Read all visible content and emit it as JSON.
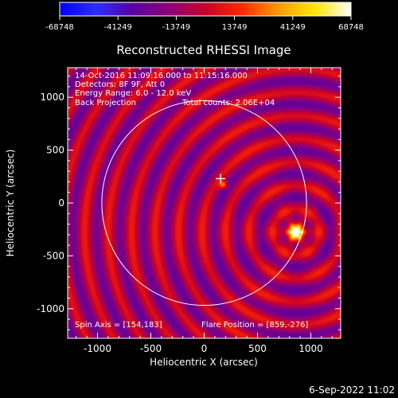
{
  "colorbar": {
    "ticks": [
      -68748,
      -41249,
      -13749,
      13749,
      41249,
      68748
    ],
    "tick_labels": [
      "-68748",
      "-41249",
      "-13749",
      "13749",
      "41249",
      "68748"
    ],
    "colors": [
      "#0000ff",
      "#2d2dff",
      "#5a00a0",
      "#8c0078",
      "#c80028",
      "#ff2800",
      "#ff9a00",
      "#ffe600",
      "#ffffff"
    ]
  },
  "title": "Reconstructed RHESSI Image",
  "info": {
    "line1": "14-Oct-2016 11:09:16.000 to 11:15:16.000",
    "line2": "Detectors: 8F 9F, Att 0",
    "line3": "Energy Range: 6.0 - 12.0 keV",
    "line4a": "Back Projection",
    "line4b": "Total counts: 2.06E+04",
    "spin_axis": "Spin Axis = [154,183]",
    "flare_position": "Flare Position = [859,-276]"
  },
  "chart_data": {
    "type": "heatmap",
    "xlabel": "Heliocentric X (arcsec)",
    "ylabel": "Heliocentric Y (arcsec)",
    "xlim": [
      -1280,
      1280
    ],
    "ylim": [
      -1280,
      1280
    ],
    "xticks": [
      -1000,
      -500,
      0,
      500,
      1000
    ],
    "yticks": [
      -1000,
      -500,
      0,
      500,
      1000
    ],
    "xtick_labels": [
      "-1000",
      "-500",
      "0",
      "500",
      "1000"
    ],
    "ytick_labels": [
      "-1000",
      "-500",
      "0",
      "500",
      "1000"
    ],
    "solar_limb_radius": 960,
    "solar_limb_center": [
      0,
      0
    ],
    "flare_source": [
      859,
      -276
    ],
    "secondary_source": [
      180,
      170
    ],
    "marker_cross": [
      154,
      230
    ]
  },
  "timestamp": "6-Sep-2022 11:02"
}
